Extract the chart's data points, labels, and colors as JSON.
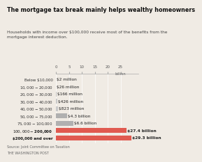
{
  "title": "The mortgage tax break mainly helps wealthy homeowners",
  "subtitle": "Households with income over $100,000 receive most of the benefits from the\nmortgage interest deduction.",
  "categories": [
    "Below $10,000",
    "$10,000-$20,000",
    "$20,000-$30,000",
    "$30,000-$40,000",
    "$40,000-$50,000",
    "$50,000-$75,000",
    "$75,000-$100,000",
    "$100,000-$200,000",
    "$200,000 and over"
  ],
  "values": [
    0.002,
    0.026,
    0.166,
    0.426,
    0.823,
    4.3,
    6.6,
    27.4,
    29.3
  ],
  "labels": [
    "$2 million",
    "$26 million",
    "$166 million",
    "$426 million",
    "$823 million",
    "$4.3 billion",
    "$6.6 billion",
    "$27.4 billion",
    "$29.3 billion"
  ],
  "bar_colors": [
    "#c9c9c9",
    "#c9c9c9",
    "#c9c9c9",
    "#c9c9c9",
    "#c9c9c9",
    "#b0b0b0",
    "#b0b0b0",
    "#e05a50",
    "#e05a50"
  ],
  "label_bold": [
    false,
    false,
    false,
    false,
    false,
    false,
    false,
    true,
    true
  ],
  "cat_bold": [
    false,
    false,
    false,
    false,
    false,
    false,
    false,
    true,
    true
  ],
  "xlim": [
    0,
    32
  ],
  "xticks": [
    0,
    5,
    10,
    15,
    20,
    25
  ],
  "source": "Source: Joint Committee on Taxation",
  "source2": "THE WASHINGTON POST",
  "bg_color": "#f0ebe4",
  "title_fontsize": 5.8,
  "subtitle_fontsize": 4.2,
  "axis_fontsize": 4.0,
  "label_fontsize": 4.2,
  "source_fontsize": 3.5
}
